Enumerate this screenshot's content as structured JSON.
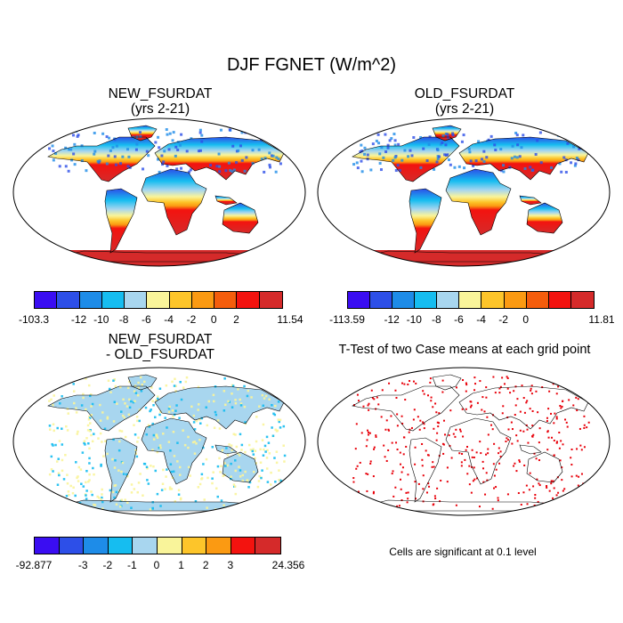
{
  "figure": {
    "title": "DJF FGNET (W/m^2)"
  },
  "panels": [
    {
      "id": "new",
      "title_line1": "NEW_FSURDAT",
      "title_line2": "(yrs 2-21)",
      "colorbar": {
        "colors": [
          "#3a0df2",
          "#2d4fe8",
          "#1e8ce8",
          "#16bdf0",
          "#a8d6ef",
          "#f9f49a",
          "#fdc52a",
          "#fb9a12",
          "#f45d0c",
          "#f3130f",
          "#d52a2a"
        ],
        "labels": [
          "-103.3",
          "-12",
          "-10",
          "-8",
          "-6",
          "-4",
          "-2",
          "0",
          "2",
          "11.54"
        ]
      }
    },
    {
      "id": "old",
      "title_line1": "OLD_FSURDAT",
      "title_line2": "(yrs 2-21)",
      "colorbar": {
        "colors": [
          "#3a0df2",
          "#2d4fe8",
          "#1e8ce8",
          "#16bdf0",
          "#a8d6ef",
          "#f9f49a",
          "#fdc52a",
          "#fb9a12",
          "#f45d0c",
          "#f3130f",
          "#d52a2a"
        ],
        "labels": [
          "-113.59",
          "-12",
          "-10",
          "-8",
          "-6",
          "-4",
          "-2",
          "0",
          "",
          "11.81"
        ]
      }
    },
    {
      "id": "diff",
      "title_line1": "NEW_FSURDAT",
      "title_line2": "- OLD_FSURDAT",
      "colorbar": {
        "colors": [
          "#3a0df2",
          "#2d4fe8",
          "#1e8ce8",
          "#16bdf0",
          "#a8d6ef",
          "#f9f49a",
          "#fdc52a",
          "#fb9a12",
          "#f3130f",
          "#d52a2a"
        ],
        "labels": [
          "-92.877",
          "-3",
          "-2",
          "-1",
          "0",
          "1",
          "2",
          "3",
          "24.356"
        ]
      }
    },
    {
      "id": "ttest",
      "title_line1": "T-Test of two Case means at each grid point",
      "note": "Cells are significant at 0.1 level",
      "significance_color": "#e8000a"
    }
  ]
}
